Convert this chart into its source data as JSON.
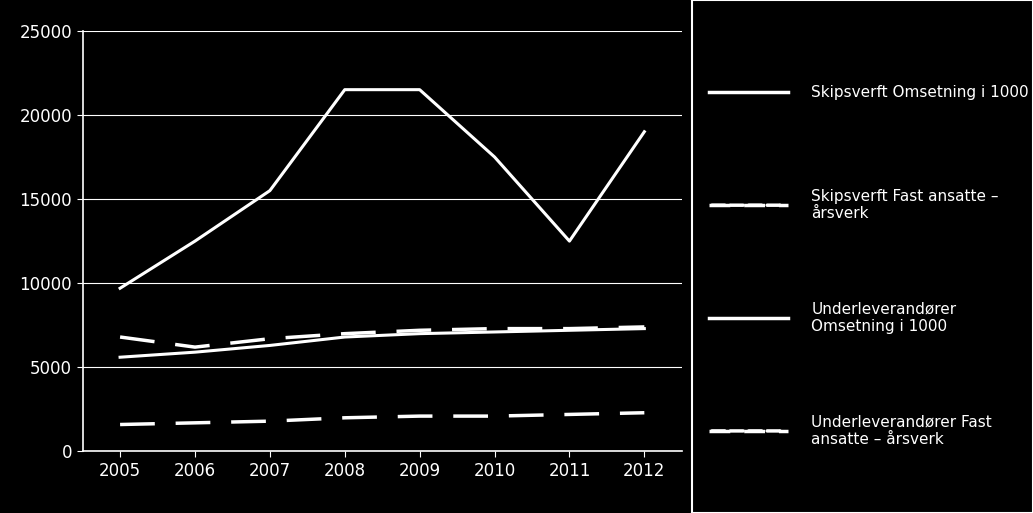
{
  "years": [
    2005,
    2006,
    2007,
    2008,
    2009,
    2010,
    2011,
    2012
  ],
  "skipsverft_omsetning": [
    9700,
    12500,
    15500,
    21500,
    21500,
    17500,
    12500,
    19000
  ],
  "skipsverft_fast_ansatte": [
    6800,
    6200,
    6700,
    7000,
    7200,
    7300,
    7300,
    7400
  ],
  "underleverandorer_omsetning": [
    5600,
    5900,
    6300,
    6800,
    7000,
    7100,
    7200,
    7300
  ],
  "underleverandorer_fast_ansatte": [
    1600,
    1700,
    1800,
    2000,
    2100,
    2100,
    2200,
    2300
  ],
  "ylim": [
    0,
    25000
  ],
  "yticks": [
    0,
    5000,
    10000,
    15000,
    20000,
    25000
  ],
  "background_color": "#000000",
  "line_color": "#ffffff",
  "text_color": "#ffffff",
  "legend_labels": [
    "Skipsverft Omsetning i 1000",
    "Skipsverft Fast ansatte –\nårsverk",
    "Underleverandører\nOmsetning i 1000",
    "Underleverandører Fast\nansatte – årsverk"
  ],
  "font_size": 12,
  "legend_font_size": 11
}
